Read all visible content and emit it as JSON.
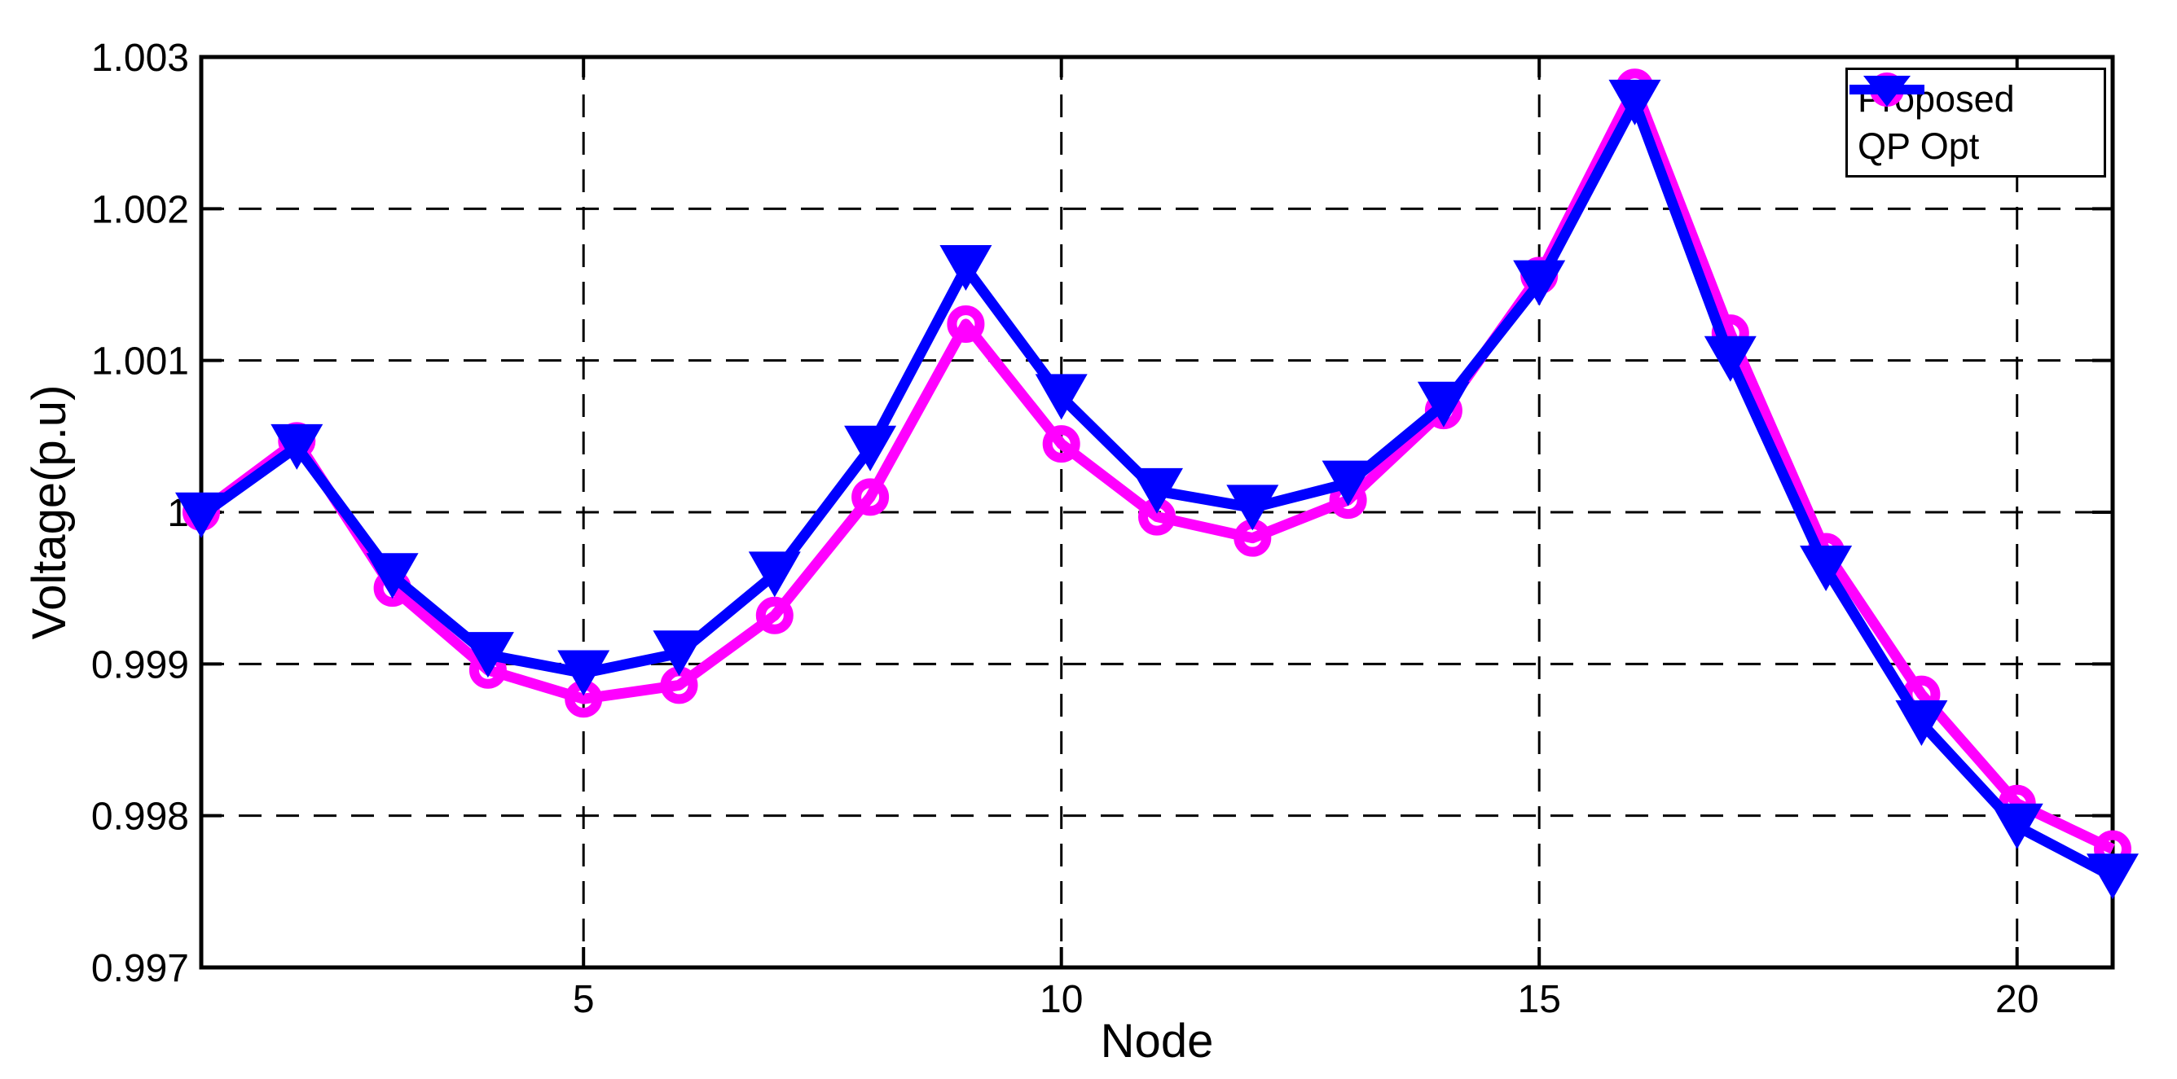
{
  "figure": {
    "background": "#FFFFFF",
    "axis_color": "#000000",
    "grid_color": "#000000"
  },
  "chart_data": {
    "type": "line",
    "title": "",
    "xlabel": "Node",
    "ylabel": "Voltage(p.u)",
    "xlim": [
      1,
      21
    ],
    "ylim": [
      0.997,
      1.003
    ],
    "xticks": [
      5,
      10,
      15,
      20
    ],
    "xtick_labels": [
      "5",
      "10",
      "15",
      "20"
    ],
    "yticks": [
      0.997,
      0.998,
      0.999,
      1.0,
      1.001,
      1.002,
      1.003
    ],
    "ytick_labels": [
      "0.997",
      "0.998",
      "0.999",
      "1",
      "1.001",
      "1.002",
      "1.003"
    ],
    "grid": true,
    "grid_style": "dashed",
    "legend_position": "top-right",
    "x": [
      1,
      2,
      3,
      4,
      5,
      6,
      7,
      8,
      9,
      10,
      11,
      12,
      13,
      14,
      15,
      16,
      17,
      18,
      19,
      20,
      21
    ],
    "series": [
      {
        "name": "Proposed",
        "color": "#FF00FF",
        "marker": "circle",
        "values": [
          1.0,
          1.00047,
          0.9995,
          0.99896,
          0.99877,
          0.99886,
          0.99932,
          1.0001,
          1.00124,
          1.00045,
          0.99997,
          0.99983,
          1.00008,
          1.00067,
          1.00156,
          1.0028,
          1.00118,
          0.99974,
          0.9988,
          0.99808,
          0.99778
        ]
      },
      {
        "name": "QP Opt",
        "color": "#0000FF",
        "marker": "triangle-down",
        "values": [
          0.99998,
          1.00043,
          0.99958,
          0.99906,
          0.99894,
          0.99907,
          0.99959,
          1.00042,
          1.00161,
          1.00076,
          1.00014,
          1.00003,
          1.00019,
          1.00071,
          1.00151,
          1.0027,
          1.00101,
          0.99963,
          0.99861,
          0.99793,
          0.9976
        ]
      }
    ]
  }
}
